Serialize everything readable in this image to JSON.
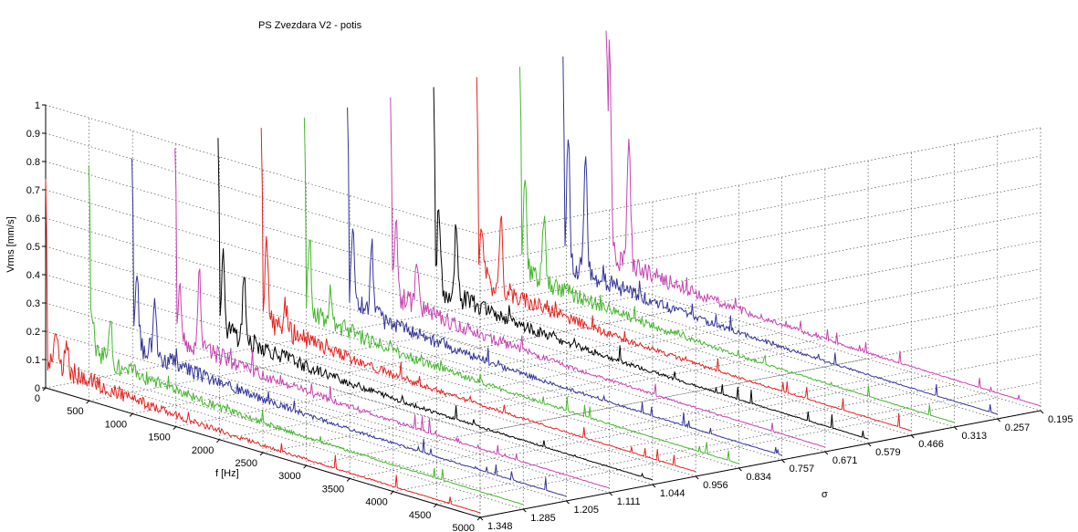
{
  "chart_data": {
    "type": "line",
    "subtype": "waterfall-3d",
    "title": "PS Zvezdara V2 - potis",
    "xlabel": "f [Hz]",
    "ylabel": "σ",
    "zlabel": "Vrms [mm/s]",
    "x_range": [
      0,
      5000
    ],
    "z_range": [
      0,
      1
    ],
    "grid": true,
    "x_ticks": [
      0,
      500,
      1000,
      1500,
      2000,
      2500,
      3000,
      3500,
      4000,
      4500,
      5000
    ],
    "z_ticks": [
      0,
      0.1,
      0.2,
      0.3,
      0.4,
      0.5,
      0.6,
      0.7,
      0.8,
      0.9,
      1
    ],
    "sigma_ticks": [
      "1.348",
      "1.285",
      "1.205",
      "1.111",
      "1.044",
      "0.956",
      "0.834",
      "0.757",
      "0.671",
      "0.579",
      "0.466",
      "0.313",
      "0.257",
      "0.195"
    ],
    "series": [
      {
        "sigma": "1.348",
        "color": "#e8221e",
        "peaks": [
          {
            "f": 5,
            "v": 1.0
          },
          {
            "f": 120,
            "v": 0.14
          },
          {
            "f": 240,
            "v": 0.12
          }
        ]
      },
      {
        "sigma": "1.285",
        "color": "#44b82c",
        "peaks": [
          {
            "f": 5,
            "v": 1.0
          },
          {
            "f": 40,
            "v": 0.16
          },
          {
            "f": 250,
            "v": 0.17
          }
        ]
      },
      {
        "sigma": "1.205",
        "color": "#33349a",
        "peaks": [
          {
            "f": 5,
            "v": 1.0
          },
          {
            "f": 60,
            "v": 0.23
          },
          {
            "f": 260,
            "v": 0.22
          }
        ]
      },
      {
        "sigma": "1.111",
        "color": "#c743b3",
        "peaks": [
          {
            "f": 5,
            "v": 1.0
          },
          {
            "f": 60,
            "v": 0.18
          },
          {
            "f": 280,
            "v": 0.28
          }
        ]
      },
      {
        "sigma": "1.044",
        "color": "#000000",
        "peaks": [
          {
            "f": 5,
            "v": 1.0
          },
          {
            "f": 60,
            "v": 0.28
          },
          {
            "f": 300,
            "v": 0.22
          }
        ]
      },
      {
        "sigma": "0.956",
        "color": "#e8221e",
        "peaks": [
          {
            "f": 5,
            "v": 1.0
          },
          {
            "f": 60,
            "v": 0.3
          },
          {
            "f": 280,
            "v": 0.09
          }
        ]
      },
      {
        "sigma": "0.834",
        "color": "#44b82c",
        "peaks": [
          {
            "f": 5,
            "v": 1.0
          },
          {
            "f": 60,
            "v": 0.26
          },
          {
            "f": 300,
            "v": 0.1
          }
        ]
      },
      {
        "sigma": "0.757",
        "color": "#33349a",
        "peaks": [
          {
            "f": 5,
            "v": 1.0
          },
          {
            "f": 60,
            "v": 0.28
          },
          {
            "f": 280,
            "v": 0.24
          }
        ]
      },
      {
        "sigma": "0.671",
        "color": "#c743b3",
        "peaks": [
          {
            "f": 5,
            "v": 1.0
          },
          {
            "f": 60,
            "v": 0.28
          },
          {
            "f": 300,
            "v": 0.16
          }
        ]
      },
      {
        "sigma": "0.579",
        "color": "#000000",
        "peaks": [
          {
            "f": 5,
            "v": 1.0
          },
          {
            "f": 60,
            "v": 0.3
          },
          {
            "f": 260,
            "v": 0.26
          }
        ]
      },
      {
        "sigma": "0.466",
        "color": "#e8221e",
        "peaks": [
          {
            "f": 5,
            "v": 1.0
          },
          {
            "f": 60,
            "v": 0.2
          },
          {
            "f": 280,
            "v": 0.24
          }
        ]
      },
      {
        "sigma": "0.313",
        "color": "#44b82c",
        "peaks": [
          {
            "f": 5,
            "v": 1.0
          },
          {
            "f": 60,
            "v": 0.36
          },
          {
            "f": 280,
            "v": 0.24
          }
        ]
      },
      {
        "sigma": "0.257",
        "color": "#33349a",
        "peaks": [
          {
            "f": 5,
            "v": 1.0
          },
          {
            "f": 60,
            "v": 0.48
          },
          {
            "f": 260,
            "v": 0.44
          }
        ]
      },
      {
        "sigma": "0.195",
        "color": "#c743b3",
        "peaks": [
          {
            "f": 5,
            "v": 1.0
          },
          {
            "f": 40,
            "v": 0.73
          },
          {
            "f": 260,
            "v": 0.45
          }
        ]
      }
    ]
  }
}
